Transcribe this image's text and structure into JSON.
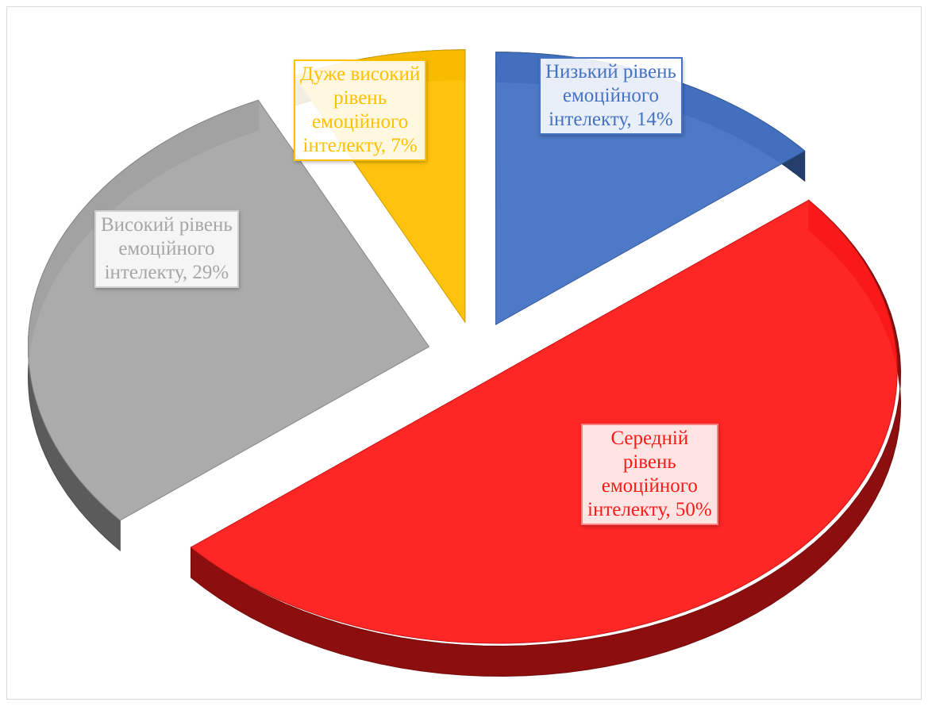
{
  "chart_data": {
    "type": "pie",
    "title": "",
    "slices": [
      {
        "label": "Низький рівень емоційного інтелекту",
        "value": 14,
        "color": "#4472C4",
        "label_lines": [
          "Низький рівень",
          "емоційного",
          "інтелекту, 14%"
        ]
      },
      {
        "label": "Середній рівень емоційного інтелекту",
        "value": 50,
        "color": "#FF1A1A",
        "label_lines": [
          "Середній",
          "рівень",
          "емоційного",
          "інтелекту, 50%"
        ]
      },
      {
        "label": "Високий рівень емоційного інтелекту",
        "value": 29,
        "color": "#A6A6A6",
        "label_lines": [
          "Високий рівень",
          "емоційного",
          "інтелекту, 29%"
        ]
      },
      {
        "label": "Дуже високий рівень емоційного інтелекту",
        "value": 7,
        "color": "#FFC000",
        "label_lines": [
          "Дуже високий",
          "рівень",
          "емоційного",
          "інтелекту, 7%"
        ]
      }
    ],
    "style": "3d-exploded",
    "legend": "none"
  }
}
